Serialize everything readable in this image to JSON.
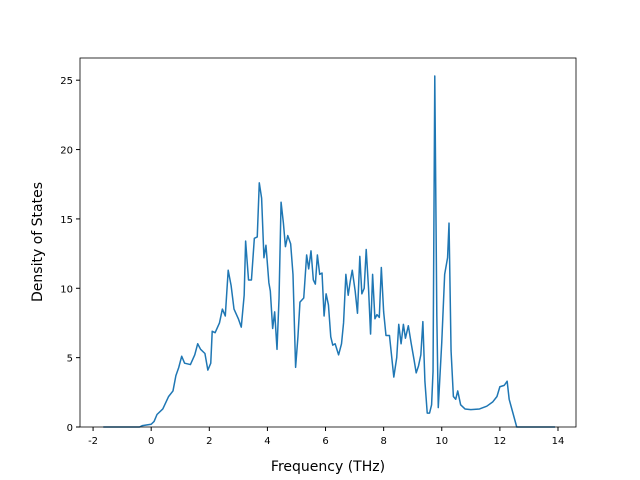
{
  "chart_data": {
    "type": "line",
    "xlabel": "Frequency (THz)",
    "ylabel": "Density of States",
    "xlim": [
      -2.45,
      14.62
    ],
    "ylim": [
      0,
      26.6
    ],
    "xticks": [
      -2,
      0,
      2,
      4,
      6,
      8,
      10,
      12,
      14
    ],
    "yticks": [
      0,
      5,
      10,
      15,
      20,
      25
    ],
    "series": [
      {
        "color": "#1f77b4",
        "x": [
          -1.65,
          -0.4,
          -0.3,
          0,
          0.1,
          0.2,
          0.4,
          0.6,
          0.75,
          0.85,
          0.95,
          1.05,
          1.15,
          1.35,
          1.5,
          1.6,
          1.7,
          1.85,
          1.95,
          2.05,
          2.1,
          2.2,
          2.35,
          2.45,
          2.55,
          2.65,
          2.75,
          2.85,
          3.0,
          3.1,
          3.2,
          3.25,
          3.35,
          3.45,
          3.55,
          3.65,
          3.72,
          3.8,
          3.88,
          3.95,
          4.05,
          4.1,
          4.18,
          4.25,
          4.33,
          4.4,
          4.47,
          4.55,
          4.62,
          4.7,
          4.8,
          4.88,
          4.97,
          5.05,
          5.12,
          5.25,
          5.35,
          5.42,
          5.5,
          5.58,
          5.65,
          5.72,
          5.8,
          5.88,
          5.95,
          6.02,
          6.1,
          6.18,
          6.25,
          6.33,
          6.45,
          6.55,
          6.62,
          6.7,
          6.78,
          6.85,
          6.92,
          7.02,
          7.1,
          7.18,
          7.25,
          7.33,
          7.4,
          7.48,
          7.55,
          7.62,
          7.7,
          7.77,
          7.85,
          7.92,
          8.0,
          8.08,
          8.2,
          8.35,
          8.45,
          8.52,
          8.6,
          8.68,
          8.75,
          8.85,
          8.95,
          9.05,
          9.12,
          9.2,
          9.28,
          9.35,
          9.42,
          9.5,
          9.58,
          9.65,
          9.7,
          9.76,
          9.83,
          9.88,
          10.0,
          10.1,
          10.2,
          10.25,
          10.32,
          10.4,
          10.48,
          10.55,
          10.65,
          10.8,
          11.0,
          11.3,
          11.55,
          11.75,
          11.9,
          12.0,
          12.15,
          12.25,
          12.32,
          12.45,
          12.58,
          12.65,
          13.0,
          13.9
        ],
        "values": [
          0,
          0,
          0.1,
          0.2,
          0.4,
          0.9,
          1.3,
          2.2,
          2.6,
          3.7,
          4.3,
          5.1,
          4.6,
          4.5,
          5.2,
          6.0,
          5.6,
          5.3,
          4.1,
          4.6,
          6.9,
          6.8,
          7.5,
          8.5,
          8.0,
          11.3,
          10.2,
          8.5,
          7.8,
          7.2,
          9.5,
          13.4,
          10.6,
          10.6,
          13.6,
          13.7,
          17.6,
          16.5,
          12.2,
          13.1,
          10.4,
          9.8,
          7.1,
          8.3,
          5.6,
          9.3,
          16.2,
          14.7,
          13.0,
          13.8,
          13.2,
          11.0,
          4.3,
          6.5,
          9.0,
          9.3,
          12.4,
          11.4,
          12.7,
          10.6,
          10.3,
          12.4,
          11.0,
          11.1,
          8.0,
          9.6,
          8.8,
          6.5,
          5.9,
          6.0,
          5.2,
          6.0,
          7.5,
          11.0,
          9.5,
          10.5,
          11.3,
          9.8,
          8.2,
          12.3,
          9.6,
          10.0,
          12.8,
          10.0,
          6.7,
          11.0,
          7.8,
          8.1,
          7.9,
          11.5,
          8.3,
          6.6,
          6.6,
          3.6,
          5.0,
          7.4,
          6.0,
          7.4,
          6.4,
          7.3,
          6.0,
          4.8,
          3.9,
          4.4,
          5.2,
          7.6,
          3.3,
          1.0,
          1.0,
          1.6,
          4.0,
          25.3,
          8.0,
          1.4,
          6.1,
          11.0,
          12.2,
          14.7,
          5.5,
          2.2,
          2.0,
          2.6,
          1.6,
          1.3,
          1.25,
          1.3,
          1.5,
          1.8,
          2.2,
          2.9,
          3.0,
          3.3,
          2.0,
          1.0,
          0,
          0,
          0,
          0
        ]
      }
    ]
  }
}
